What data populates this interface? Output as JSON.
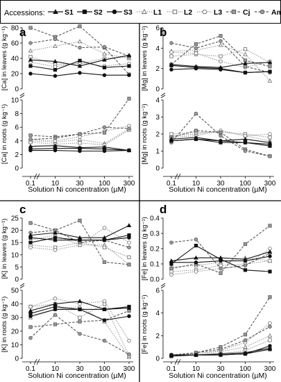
{
  "legend": {
    "title": "Accessions:",
    "items": [
      {
        "name": "S1",
        "dash": "solid",
        "marker": "triangle",
        "fill": "#111111",
        "line": "#111111"
      },
      {
        "name": "S2",
        "dash": "solid",
        "marker": "square",
        "fill": "#111111",
        "line": "#111111"
      },
      {
        "name": "S3",
        "dash": "solid",
        "marker": "circle",
        "fill": "#111111",
        "line": "#111111"
      },
      {
        "name": "L1",
        "dash": "dotted",
        "marker": "triangle",
        "fill": "#ffffff",
        "line": "#999999"
      },
      {
        "name": "L2",
        "dash": "dotted",
        "marker": "square",
        "fill": "#ffffff",
        "line": "#999999"
      },
      {
        "name": "L3",
        "dash": "dotted",
        "marker": "circle",
        "fill": "#ffffff",
        "line": "#999999"
      },
      {
        "name": "Cj",
        "dash": "dashed",
        "marker": "square",
        "fill": "#999999",
        "line": "#555555"
      },
      {
        "name": "Am",
        "dash": "dashed",
        "marker": "circle",
        "fill": "#999999",
        "line": "#555555"
      }
    ]
  },
  "x_label": "Solution Ni concentration (µM)",
  "x_ticks": [
    "0.1",
    "10",
    "30",
    "100",
    "300"
  ],
  "colors": {
    "dark": "#111111",
    "light": "#999999",
    "mid": "#555555"
  },
  "chart_data": [
    {
      "type": "line",
      "panel": "a",
      "subplots": [
        {
          "ylabel": "[Ca] in leaves (g kg⁻¹)",
          "ylim": [
            0,
            80
          ],
          "yticks": [
            0,
            20,
            40,
            60,
            80
          ],
          "x": [
            "0.1",
            "10",
            "30",
            "100",
            "300"
          ],
          "series": [
            {
              "name": "S1",
              "values": [
                38,
                36,
                30,
                38,
                44
              ]
            },
            {
              "name": "S2",
              "values": [
                30,
                25,
                37,
                28,
                30
              ]
            },
            {
              "name": "S3",
              "values": [
                20,
                17,
                21,
                18,
                18
              ]
            },
            {
              "name": "L1",
              "values": [
                50,
                56,
                62,
                46,
                40
              ]
            },
            {
              "name": "L2",
              "values": [
                42,
                32,
                33,
                40,
                42
              ]
            },
            {
              "name": "L3",
              "values": [
                35,
                29,
                34,
                30,
                33
              ]
            },
            {
              "name": "Cj",
              "values": [
                80,
                68,
                82,
                54,
                19
              ]
            },
            {
              "name": "Am",
              "values": [
                60,
                65,
                54,
                55,
                43
              ]
            }
          ]
        },
        {
          "ylabel": "[Ca] in roots (g kg⁻¹)",
          "ylim": [
            0,
            10
          ],
          "yticks": [
            0,
            2,
            4,
            6,
            8,
            10
          ],
          "x": [
            "0.1",
            "10",
            "30",
            "100",
            "300"
          ],
          "series": [
            {
              "name": "S1",
              "values": [
                3.2,
                3.3,
                3.0,
                3.1,
                2.6
              ]
            },
            {
              "name": "S2",
              "values": [
                2.8,
                2.9,
                2.9,
                2.8,
                2.6
              ]
            },
            {
              "name": "S3",
              "values": [
                2.6,
                2.6,
                2.5,
                2.5,
                2.6
              ]
            },
            {
              "name": "L1",
              "values": [
                4.0,
                3.8,
                4.2,
                3.6,
                5.8
              ]
            },
            {
              "name": "L2",
              "values": [
                3.8,
                3.5,
                3.7,
                3.4,
                5.6
              ]
            },
            {
              "name": "L3",
              "values": [
                4.2,
                4.0,
                4.6,
                5.4,
                6.2
              ]
            },
            {
              "name": "Cj",
              "values": [
                4.8,
                4.6,
                5.0,
                5.2,
                10.2
              ]
            },
            {
              "name": "Am",
              "values": [
                4.2,
                4.4,
                5.0,
                6.0,
                5.8
              ]
            }
          ]
        }
      ]
    },
    {
      "type": "line",
      "panel": "b",
      "subplots": [
        {
          "ylabel": "[Mg] in leaves (g kg⁻¹)",
          "ylim": [
            0,
            6
          ],
          "yticks": [
            0,
            2,
            4,
            6
          ],
          "x": [
            "0.1",
            "10",
            "30",
            "100",
            "300"
          ],
          "series": [
            {
              "name": "S1",
              "values": [
                2.4,
                2.2,
                2.1,
                2.5,
                2.6
              ]
            },
            {
              "name": "S2",
              "values": [
                2.3,
                2.1,
                2.0,
                1.6,
                1.7
              ]
            },
            {
              "name": "S3",
              "values": [
                1.9,
                2.0,
                1.9,
                1.6,
                1.7
              ]
            },
            {
              "name": "L1",
              "values": [
                3.7,
                3.8,
                4.3,
                3.4,
                0.8
              ]
            },
            {
              "name": "L2",
              "values": [
                3.2,
                3.4,
                3.2,
                3.9,
                2.6
              ]
            },
            {
              "name": "L3",
              "values": [
                3.6,
                3.5,
                2.7,
                2.1,
                2.7
              ]
            },
            {
              "name": "Cj",
              "values": [
                2.4,
                4.4,
                5.2,
                2.8,
                2.2
              ]
            },
            {
              "name": "Am",
              "values": [
                4.5,
                4.0,
                4.7,
                2.2,
                1.6
              ]
            }
          ]
        },
        {
          "ylabel": "[Mg] in roots (g kg⁻¹)",
          "ylim": [
            0,
            4
          ],
          "yticks": [
            0,
            1,
            2,
            3,
            4
          ],
          "x": [
            "0.1",
            "10",
            "30",
            "100",
            "300"
          ],
          "series": [
            {
              "name": "S1",
              "values": [
                1.7,
                1.8,
                1.6,
                1.7,
                1.5
              ]
            },
            {
              "name": "S2",
              "values": [
                1.6,
                1.7,
                1.5,
                1.5,
                1.3
              ]
            },
            {
              "name": "S3",
              "values": [
                1.6,
                1.7,
                1.6,
                1.5,
                1.4
              ]
            },
            {
              "name": "L1",
              "values": [
                1.9,
                2.0,
                2.2,
                1.9,
                1.6
              ]
            },
            {
              "name": "L2",
              "values": [
                2.0,
                2.1,
                2.1,
                2.0,
                1.8
              ]
            },
            {
              "name": "L3",
              "values": [
                1.8,
                1.9,
                2.2,
                1.9,
                2.0
              ]
            },
            {
              "name": "Cj",
              "values": [
                1.8,
                2.2,
                2.1,
                1.1,
                0.7
              ]
            },
            {
              "name": "Am",
              "values": [
                1.5,
                3.2,
                1.9,
                1.0,
                0.7
              ]
            }
          ]
        }
      ]
    },
    {
      "type": "line",
      "panel": "c",
      "subplots": [
        {
          "ylabel": "[K] in leaves (g kg⁻¹)",
          "ylim": [
            0,
            25
          ],
          "yticks": [
            0,
            5,
            10,
            15,
            20,
            25
          ],
          "x": [
            "0.1",
            "10",
            "30",
            "100",
            "300"
          ],
          "series": [
            {
              "name": "S1",
              "values": [
                18,
                19,
                17,
                17,
                22
              ]
            },
            {
              "name": "S2",
              "values": [
                17,
                16,
                16,
                16,
                18
              ]
            },
            {
              "name": "S3",
              "values": [
                15,
                17,
                16,
                16,
                17
              ]
            },
            {
              "name": "L1",
              "values": [
                16,
                18,
                14,
                14,
                6
              ]
            },
            {
              "name": "L2",
              "values": [
                14,
                13,
                15,
                13,
                9
              ]
            },
            {
              "name": "L3",
              "values": [
                13,
                12,
                14,
                21,
                15
              ]
            },
            {
              "name": "Cj",
              "values": [
                23,
                20,
                24,
                7,
                6
              ]
            },
            {
              "name": "Am",
              "values": [
                19,
                20,
                15,
                16,
                13
              ]
            }
          ]
        },
        {
          "ylabel": "[K] in roots (g kg⁻¹)",
          "ylim": [
            0,
            50
          ],
          "yticks": [
            0,
            10,
            20,
            30,
            40,
            50
          ],
          "x": [
            "0.1",
            "10",
            "30",
            "100",
            "300"
          ],
          "series": [
            {
              "name": "S1",
              "values": [
                35,
                40,
                42,
                36,
                37
              ]
            },
            {
              "name": "S2",
              "values": [
                33,
                38,
                36,
                36,
                38
              ]
            },
            {
              "name": "S3",
              "values": [
                31,
                36,
                36,
                28,
                31
              ]
            },
            {
              "name": "L1",
              "values": [
                30,
                36,
                38,
                27,
                1
              ]
            },
            {
              "name": "L2",
              "values": [
                38,
                40,
                30,
                40,
                2
              ]
            },
            {
              "name": "L3",
              "values": [
                38,
                44,
                40,
                42,
                13
              ]
            },
            {
              "name": "Cj",
              "values": [
                23,
                25,
                27,
                28,
                35
              ]
            },
            {
              "name": "Am",
              "values": [
                15,
                32,
                18,
                13,
                3
              ]
            }
          ]
        }
      ]
    },
    {
      "type": "line",
      "panel": "d",
      "subplots": [
        {
          "ylabel": "[Fe] in leaves (g kg⁻¹)",
          "ylim": [
            0,
            0.4
          ],
          "yticks": [
            0.0,
            0.1,
            0.2,
            0.3,
            0.4
          ],
          "x": [
            "0.1",
            "10",
            "30",
            "100",
            "300"
          ],
          "series": [
            {
              "name": "S1",
              "values": [
                0.12,
                0.14,
                0.14,
                0.13,
                0.18
              ]
            },
            {
              "name": "S2",
              "values": [
                0.1,
                0.22,
                0.13,
                0.06,
                0.05
              ]
            },
            {
              "name": "S3",
              "values": [
                0.11,
                0.11,
                0.12,
                0.12,
                0.15
              ]
            },
            {
              "name": "L1",
              "values": [
                0.08,
                0.09,
                0.11,
                0.14,
                0.12
              ]
            },
            {
              "name": "L2",
              "values": [
                0.05,
                0.06,
                0.09,
                0.1,
                0.12
              ]
            },
            {
              "name": "L3",
              "values": [
                0.03,
                0.05,
                0.07,
                0.09,
                0.2
              ]
            },
            {
              "name": "Cj",
              "values": [
                0.07,
                0.1,
                0.04,
                0.23,
                0.35
              ]
            },
            {
              "name": "Am",
              "values": [
                0.24,
                0.26,
                0.07,
                0.09,
                0.17
              ]
            }
          ]
        },
        {
          "ylabel": "[Fe] in roots (g kg⁻¹)",
          "ylim": [
            0,
            6
          ],
          "yticks": [
            0.0,
            2.0,
            4.0,
            6.0
          ],
          "x": [
            "0.1",
            "10",
            "30",
            "100",
            "300"
          ],
          "series": [
            {
              "name": "S1",
              "values": [
                0.3,
                0.3,
                0.4,
                0.5,
                0.9
              ]
            },
            {
              "name": "S2",
              "values": [
                0.2,
                0.3,
                0.3,
                0.4,
                0.8
              ]
            },
            {
              "name": "S3",
              "values": [
                0.3,
                0.3,
                0.3,
                0.4,
                1.1
              ]
            },
            {
              "name": "L1",
              "values": [
                0.3,
                0.4,
                0.6,
                1.0,
                2.0
              ]
            },
            {
              "name": "L2",
              "values": [
                0.2,
                0.3,
                0.4,
                0.7,
                1.6
              ]
            },
            {
              "name": "L3",
              "values": [
                0.3,
                0.4,
                0.7,
                1.4,
                3.1
              ]
            },
            {
              "name": "Cj",
              "values": [
                0.3,
                0.5,
                1.0,
                2.1,
                5.4
              ]
            },
            {
              "name": "Am",
              "values": [
                0.2,
                0.5,
                0.8,
                1.6,
                2.8
              ]
            }
          ]
        }
      ]
    }
  ]
}
